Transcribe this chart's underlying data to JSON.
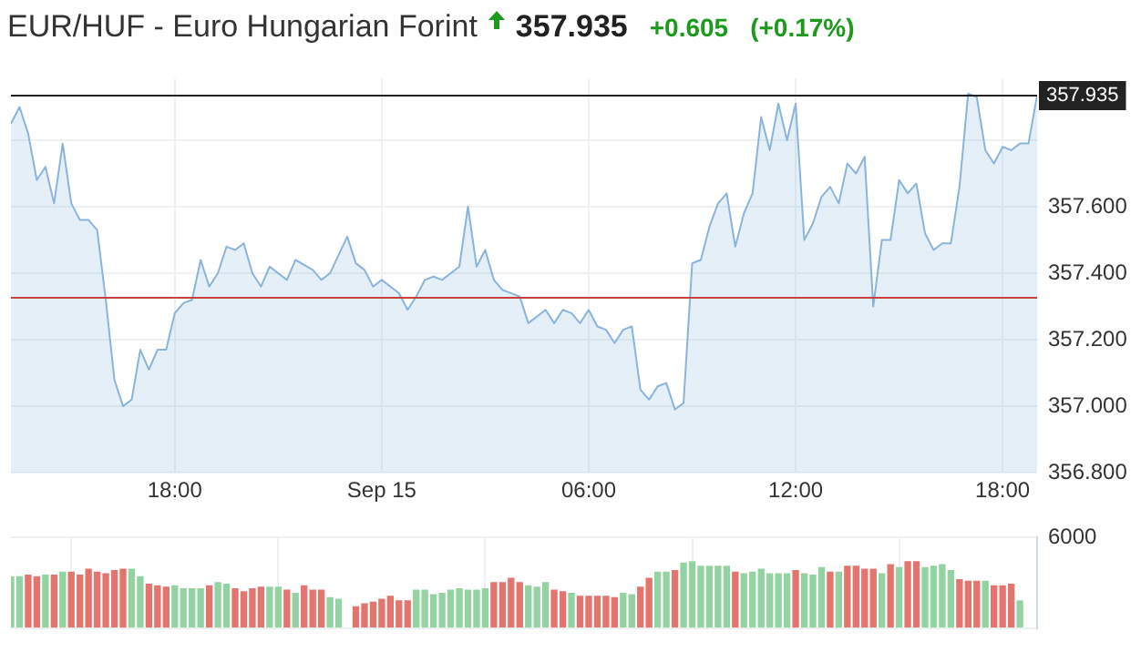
{
  "chart_data": [
    {
      "type": "area",
      "title": "EUR/HUF - Euro Hungarian Forint",
      "annotations": [
        "357.935",
        "+0.605",
        "(+0.17%)"
      ],
      "x": [
        "--09-14T13:15",
        "--09-14T13:30",
        "--09-14T13:45",
        "--09-14T14:00",
        "--09-14T14:15",
        "--09-14T14:30",
        "--09-14T14:45",
        "--09-14T15:00",
        "--09-14T15:15",
        "--09-14T15:30",
        "--09-14T15:45",
        "--09-14T16:00",
        "--09-14T16:15",
        "--09-14T16:30",
        "--09-14T16:45",
        "--09-14T17:00",
        "--09-14T17:15",
        "--09-14T17:30",
        "--09-14T17:45",
        "--09-14T18:00",
        "--09-14T18:15",
        "--09-14T18:30",
        "--09-14T18:45",
        "--09-14T19:00",
        "--09-14T19:15",
        "--09-14T19:30",
        "--09-14T19:45",
        "--09-14T20:00",
        "--09-14T20:15",
        "--09-14T20:30",
        "--09-14T20:45",
        "--09-14T21:15",
        "--09-14T21:30",
        "--09-14T22:00",
        "--09-14T22:15",
        "--09-14T22:30",
        "--09-14T23:00",
        "--09-14T23:15",
        "--09-14T23:30",
        "--09-14T23:45",
        "--09-15T00:00",
        "--09-15T00:30",
        "--09-15T00:45",
        "--09-15T01:00",
        "--09-15T01:15",
        "--09-15T01:30",
        "--09-15T01:45",
        "--09-15T02:15",
        "--09-15T02:30",
        "--09-15T02:45",
        "--09-15T03:00",
        "--09-15T03:15",
        "--09-15T03:30",
        "--09-15T04:00",
        "--09-15T04:15",
        "--09-15T04:45",
        "--09-15T05:00",
        "--09-15T05:15",
        "--09-15T05:30",
        "--09-15T05:45",
        "--09-15T06:00",
        "--09-15T06:15",
        "--09-15T06:30",
        "--09-15T06:45",
        "--09-15T07:00",
        "--09-15T07:15",
        "--09-15T07:30",
        "--09-15T07:45",
        "--09-15T08:00",
        "--09-15T08:15",
        "--09-15T08:30",
        "--09-15T08:45",
        "--09-15T09:00",
        "--09-15T09:15",
        "--09-15T09:30",
        "--09-15T09:45",
        "--09-15T10:00",
        "--09-15T10:15",
        "--09-15T10:30",
        "--09-15T10:45",
        "--09-15T11:00",
        "--09-15T11:15",
        "--09-15T11:30",
        "--09-15T11:45",
        "--09-15T12:00",
        "--09-15T12:15",
        "--09-15T12:30",
        "--09-15T12:45",
        "--09-15T13:00",
        "--09-15T13:15",
        "--09-15T13:30",
        "--09-15T13:45",
        "--09-15T14:00",
        "--09-15T14:15",
        "--09-15T14:30",
        "--09-15T14:45",
        "--09-15T15:00",
        "--09-15T15:15",
        "--09-15T15:30",
        "--09-15T15:45",
        "--09-15T16:00",
        "--09-15T16:15",
        "--09-15T16:30",
        "--09-15T16:45",
        "--09-15T17:00",
        "--09-15T17:15",
        "--09-15T17:30",
        "--09-15T17:45",
        "--09-15T18:00",
        "--09-15T18:15",
        "--09-15T18:30",
        "--09-15T18:45",
        "--09-15T19:00"
      ],
      "values": [
        357.85,
        357.9,
        357.82,
        357.68,
        357.72,
        357.61,
        357.79,
        357.61,
        357.56,
        357.56,
        357.53,
        357.32,
        357.08,
        357.0,
        357.02,
        357.17,
        357.11,
        357.17,
        357.17,
        357.28,
        357.31,
        357.32,
        357.44,
        357.36,
        357.4,
        357.48,
        357.47,
        357.49,
        357.4,
        357.36,
        357.42,
        357.38,
        357.44,
        357.41,
        357.38,
        357.4,
        357.51,
        357.43,
        357.41,
        357.36,
        357.38,
        357.34,
        357.29,
        357.33,
        357.38,
        357.39,
        357.38,
        357.42,
        357.6,
        357.42,
        357.47,
        357.38,
        357.35,
        357.33,
        357.25,
        357.29,
        357.25,
        357.29,
        357.28,
        357.25,
        357.29,
        357.24,
        357.23,
        357.19,
        357.23,
        357.24,
        357.05,
        357.02,
        357.06,
        357.07,
        356.99,
        357.01,
        357.43,
        357.44,
        357.54,
        357.61,
        357.64,
        357.48,
        357.58,
        357.64,
        357.87,
        357.77,
        357.91,
        357.8,
        357.91,
        357.5,
        357.55,
        357.63,
        357.66,
        357.61,
        357.73,
        357.7,
        357.75,
        357.3,
        357.5,
        357.5,
        357.68,
        357.64,
        357.67,
        357.52,
        357.47,
        357.49,
        357.49,
        357.66,
        357.94,
        357.93,
        357.77,
        357.73,
        357.78,
        357.77,
        357.79,
        357.79,
        357.935
      ],
      "color": "#8ab4dc",
      "xlim": [
        "--09-14T13:15",
        "--09-15T19:00"
      ],
      "xticks": [
        {
          "value": "--09-14T18:00",
          "label": "18:00"
        },
        {
          "value": "--09-15T00:00",
          "label": "Sep 15"
        },
        {
          "value": "--09-15T06:00",
          "label": "06:00"
        },
        {
          "value": "--09-15T12:00",
          "label": "12:00"
        },
        {
          "value": "--09-15T18:00",
          "label": "18:00"
        }
      ],
      "ylim": [
        356.8,
        357.985
      ],
      "yticks": [
        {
          "value": 356.8,
          "label": "356.800"
        },
        {
          "value": 357,
          "label": "357.000"
        },
        {
          "value": 357.2,
          "label": "357.200"
        },
        {
          "value": 357.4,
          "label": "357.400"
        },
        {
          "value": 357.6,
          "label": "357.600"
        },
        {
          "value": 357.8,
          "label": null
        }
      ],
      "ref_lines": [
        {
          "axis": "y",
          "value": 357.935,
          "label": "357.935",
          "color": "#222222"
        },
        {
          "axis": "y",
          "value": 357.33,
          "color": "#c8423c"
        }
      ],
      "grid": true
    },
    {
      "type": "bar",
      "x": [
        "--09-14T13:15",
        "--09-14T13:30",
        "--09-14T13:45",
        "--09-14T14:00",
        "--09-14T14:15",
        "--09-14T14:30",
        "--09-14T14:45",
        "--09-14T15:00",
        "--09-14T15:15",
        "--09-14T15:30",
        "--09-14T15:45",
        "--09-14T16:00",
        "--09-14T16:15",
        "--09-14T16:30",
        "--09-14T16:45",
        "--09-14T17:00",
        "--09-14T17:15",
        "--09-14T17:30",
        "--09-14T17:45",
        "--09-14T18:00",
        "--09-14T18:15",
        "--09-14T18:30",
        "--09-14T18:45",
        "--09-14T19:00",
        "--09-14T19:15",
        "--09-14T19:30",
        "--09-14T19:45",
        "--09-14T20:00",
        "--09-14T20:15",
        "--09-14T20:30",
        "--09-14T20:45",
        "--09-14T21:00",
        "--09-14T21:15",
        "--09-14T21:30",
        "--09-14T21:45",
        "--09-14T22:00",
        "--09-14T22:15",
        "--09-14T22:30",
        "--09-14T22:45",
        "--09-14T23:15",
        "--09-14T23:30",
        "--09-14T23:45",
        "--09-15T00:00",
        "--09-15T00:15",
        "--09-15T00:30",
        "--09-15T00:45",
        "--09-15T01:00",
        "--09-15T01:15",
        "--09-15T01:30",
        "--09-15T01:45",
        "--09-15T02:00",
        "--09-15T02:15",
        "--09-15T02:30",
        "--09-15T02:45",
        "--09-15T03:00",
        "--09-15T03:15",
        "--09-15T03:30",
        "--09-15T03:45",
        "--09-15T04:00",
        "--09-15T04:15",
        "--09-15T04:30",
        "--09-15T04:45",
        "--09-15T05:00",
        "--09-15T05:15",
        "--09-15T05:30",
        "--09-15T05:45",
        "--09-15T06:00",
        "--09-15T06:15",
        "--09-15T06:30",
        "--09-15T06:45",
        "--09-15T07:00",
        "--09-15T07:15",
        "--09-15T07:30",
        "--09-15T07:45",
        "--09-15T08:00",
        "--09-15T08:15",
        "--09-15T08:30",
        "--09-15T08:45",
        "--09-15T09:00",
        "--09-15T09:15",
        "--09-15T09:30",
        "--09-15T09:45",
        "--09-15T10:00",
        "--09-15T10:15",
        "--09-15T10:30",
        "--09-15T10:45",
        "--09-15T11:00",
        "--09-15T11:15",
        "--09-15T11:30",
        "--09-15T11:45",
        "--09-15T12:00",
        "--09-15T12:15",
        "--09-15T12:30",
        "--09-15T12:45",
        "--09-15T13:00",
        "--09-15T13:15",
        "--09-15T13:30",
        "--09-15T13:45",
        "--09-15T14:00",
        "--09-15T14:15",
        "--09-15T14:30",
        "--09-15T14:45",
        "--09-15T15:00",
        "--09-15T15:15",
        "--09-15T15:30",
        "--09-15T15:45",
        "--09-15T16:00",
        "--09-15T16:15",
        "--09-15T16:30",
        "--09-15T16:45",
        "--09-15T17:00",
        "--09-15T17:15",
        "--09-15T17:30",
        "--09-15T17:45",
        "--09-15T18:00",
        "--09-15T18:15",
        "--09-15T18:30"
      ],
      "values": [
        3400,
        3400,
        3500,
        3400,
        3500,
        3500,
        3700,
        3700,
        3500,
        3900,
        3700,
        3600,
        3800,
        3900,
        3900,
        3400,
        2900,
        2800,
        2700,
        2800,
        2600,
        2600,
        2600,
        2800,
        3000,
        2900,
        2600,
        2400,
        2600,
        2700,
        2700,
        2700,
        2500,
        2300,
        2800,
        2500,
        2500,
        2000,
        1900,
        1400,
        1600,
        1700,
        1900,
        2100,
        1800,
        1800,
        2500,
        2500,
        2200,
        2300,
        2500,
        2600,
        2500,
        2500,
        2600,
        3000,
        3000,
        3300,
        3000,
        2800,
        2700,
        3000,
        2500,
        2400,
        2300,
        2100,
        2100,
        2100,
        2100,
        2000,
        2300,
        2200,
        2700,
        3300,
        3700,
        3700,
        3800,
        4300,
        4400,
        4100,
        4100,
        4100,
        4100,
        3700,
        3600,
        3700,
        3900,
        3600,
        3600,
        3600,
        3800,
        3600,
        3500,
        4000,
        3700,
        3700,
        4100,
        4100,
        3900,
        3900,
        3600,
        4200,
        4000,
        4400,
        4400,
        4000,
        4100,
        4200,
        3800,
        3200,
        3100,
        3100,
        3100,
        2800,
        2800,
        2900,
        1800
      ],
      "colors": [
        "#93d3a2",
        "#93d3a2",
        "#e3746e",
        "#e3746e",
        "#93d3a2",
        "#e3746e",
        "#93d3a2",
        "#e3746e",
        "#e3746e",
        "#e3746e",
        "#e3746e",
        "#e3746e",
        "#e3746e",
        "#e3746e",
        "#93d3a2",
        "#93d3a2",
        "#e3746e",
        "#e3746e",
        "#e3746e",
        "#93d3a2",
        "#93d3a2",
        "#93d3a2",
        "#93d3a2",
        "#e3746e",
        "#93d3a2",
        "#93d3a2",
        "#e3746e",
        "#e3746e",
        "#e3746e",
        "#e3746e",
        "#93d3a2",
        "#93d3a2",
        "#e3746e",
        "#93d3a2",
        "#e3746e",
        "#e3746e",
        "#e3746e",
        "#93d3a2",
        "#93d3a2",
        "#e3746e",
        "#e3746e",
        "#e3746e",
        "#e3746e",
        "#e3746e",
        "#e3746e",
        "#e3746e",
        "#93d3a2",
        "#93d3a2",
        "#93d3a2",
        "#93d3a2",
        "#93d3a2",
        "#93d3a2",
        "#93d3a2",
        "#93d3a2",
        "#93d3a2",
        "#e3746e",
        "#e3746e",
        "#e3746e",
        "#e3746e",
        "#93d3a2",
        "#93d3a2",
        "#93d3a2",
        "#e3746e",
        "#e3746e",
        "#93d3a2",
        "#e3746e",
        "#e3746e",
        "#e3746e",
        "#e3746e",
        "#e3746e",
        "#93d3a2",
        "#93d3a2",
        "#e3746e",
        "#e3746e",
        "#93d3a2",
        "#93d3a2",
        "#e3746e",
        "#93d3a2",
        "#93d3a2",
        "#93d3a2",
        "#93d3a2",
        "#93d3a2",
        "#93d3a2",
        "#e3746e",
        "#93d3a2",
        "#93d3a2",
        "#93d3a2",
        "#93d3a2",
        "#93d3a2",
        "#93d3a2",
        "#e3746e",
        "#93d3a2",
        "#93d3a2",
        "#93d3a2",
        "#e3746e",
        "#93d3a2",
        "#e3746e",
        "#e3746e",
        "#e3746e",
        "#e3746e",
        "#93d3a2",
        "#e3746e",
        "#93d3a2",
        "#e3746e",
        "#e3746e",
        "#93d3a2",
        "#93d3a2",
        "#93d3a2",
        "#93d3a2",
        "#e3746e",
        "#e3746e",
        "#e3746e",
        "#93d3a2",
        "#e3746e",
        "#e3746e",
        "#e3746e",
        "#93d3a2"
      ],
      "xlim": [
        "--09-14T13:15",
        "--09-15T19:00"
      ],
      "xticks": [
        {
          "value": "--09-14T18:00",
          "label": null
        },
        {
          "value": "--09-15T00:00",
          "label": null
        },
        {
          "value": "--09-15T06:00",
          "label": null
        },
        {
          "value": "--09-15T12:00",
          "label": null
        },
        {
          "value": "--09-15T18:00",
          "label": null
        }
      ],
      "ylim": [
        0,
        6000
      ],
      "yticks": [
        0,
        6000
      ],
      "tick_labels": "y",
      "grid": true
    }
  ]
}
